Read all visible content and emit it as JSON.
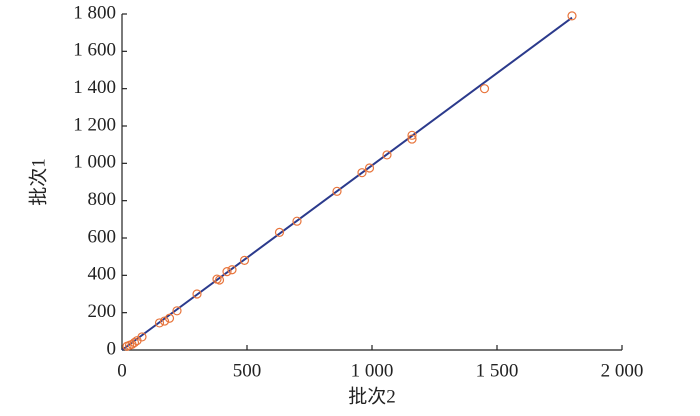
{
  "chart_data": {
    "type": "scatter",
    "x_label": "批次2",
    "y_label": "批次1",
    "xlim": [
      0,
      2000
    ],
    "ylim": [
      0,
      1800
    ],
    "xticks": [
      0,
      500,
      {
        "value": 1000,
        "label": "1 000"
      },
      {
        "value": 1500,
        "label": "1 500"
      },
      {
        "value": 2000,
        "label": "2 000"
      }
    ],
    "yticks": [
      0,
      200,
      400,
      600,
      800,
      {
        "value": 1000,
        "label": "1 000"
      },
      {
        "value": 1200,
        "label": "1 200"
      },
      {
        "value": 1400,
        "label": "1 400"
      },
      {
        "value": 1600,
        "label": "1 600"
      },
      {
        "value": 1800,
        "label": "1 800"
      }
    ],
    "points": {
      "color": "#e8743b",
      "x": [
        20,
        30,
        40,
        50,
        60,
        80,
        150,
        170,
        190,
        220,
        300,
        380,
        390,
        420,
        440,
        490,
        630,
        700,
        860,
        960,
        990,
        1060,
        1160,
        1160,
        1450,
        1800
      ],
      "y": [
        20,
        25,
        30,
        40,
        50,
        70,
        145,
        155,
        170,
        210,
        300,
        380,
        375,
        420,
        430,
        480,
        630,
        690,
        850,
        950,
        975,
        1045,
        1130,
        1150,
        1400,
        1790
      ]
    },
    "fit_line": {
      "color": "#2b3a8c",
      "x": [
        0,
        1800
      ],
      "y": [
        0,
        1780
      ]
    }
  }
}
